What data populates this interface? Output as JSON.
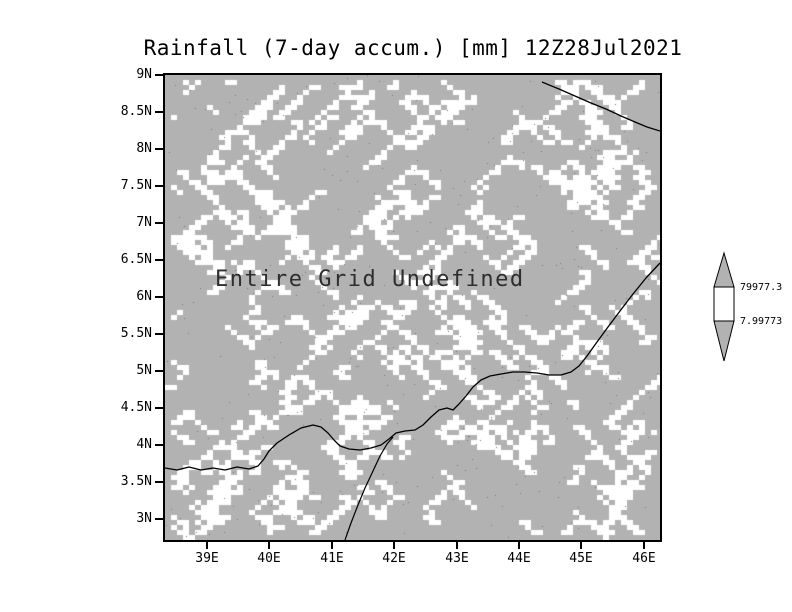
{
  "chart_data": {
    "type": "heatmap",
    "title": "Rainfall (7-day accum.) [mm] 12Z28Jul2021",
    "variable": "Rainfall (7-day accum.)",
    "units": "mm",
    "valid_time": "12Z28Jul2021",
    "status": "Entire Grid Undefined",
    "grid_values": "undefined",
    "y_axis": {
      "ticks": [
        "9N",
        "8.5N",
        "8N",
        "7.5N",
        "7N",
        "6.5N",
        "6N",
        "5.5N",
        "5N",
        "4.5N",
        "4N",
        "3.5N",
        "3N"
      ],
      "range": [
        "3N",
        "9N"
      ]
    },
    "x_axis": {
      "ticks": [
        "39E",
        "40E",
        "41E",
        "42E",
        "43E",
        "44E",
        "45E",
        "46E"
      ],
      "range": [
        "39E",
        "46E"
      ]
    },
    "legend": {
      "position": "right",
      "labels": [
        "79977.3",
        "7.99773"
      ]
    },
    "colors": {
      "undefined_fill": "#b2b2b2",
      "background": "#ffffff",
      "line": "#000000"
    }
  }
}
